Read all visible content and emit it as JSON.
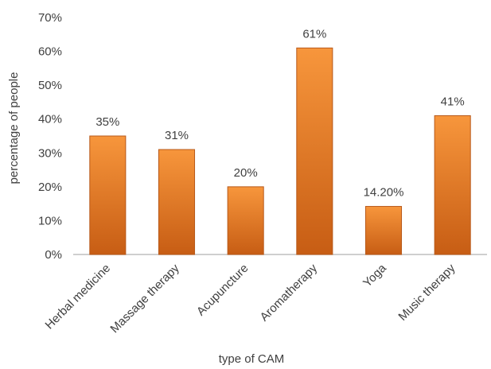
{
  "chart_data": {
    "type": "bar",
    "categories": [
      "Herbal medicine",
      "Massage therapy",
      "Acupuncture",
      "Aromatherapy",
      "Yoga",
      "Music therapy"
    ],
    "values": [
      35,
      31,
      20,
      61,
      14.2,
      41
    ],
    "data_labels": [
      "35%",
      "31%",
      "20%",
      "61%",
      "14.20%",
      "41%"
    ],
    "xlabel": "type of CAM",
    "ylabel": "percentage of people",
    "ylim": [
      0,
      70
    ],
    "yticks": [
      0,
      10,
      20,
      30,
      40,
      50,
      60,
      70
    ],
    "ytick_labels": [
      "0%",
      "10%",
      "20%",
      "30%",
      "40%",
      "50%",
      "60%",
      "70%"
    ],
    "grid": false,
    "legend": "none",
    "colors": {
      "bar_top": "#f7963c",
      "bar_bottom": "#c75d14",
      "bar_edge": "#b8591a",
      "axis": "#bfbfbf",
      "text": "#404040"
    }
  }
}
